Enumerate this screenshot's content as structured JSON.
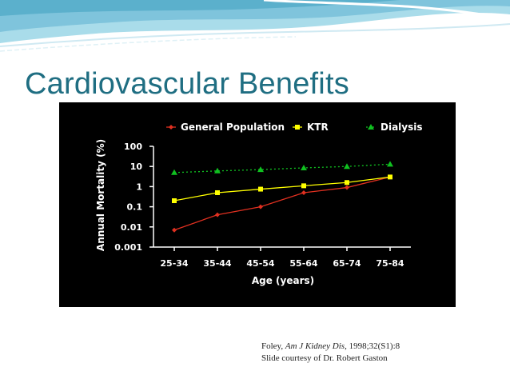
{
  "slide": {
    "title": "Cardiovascular Benefits",
    "caption": {
      "author": "Foley, ",
      "journal": "Am J Kidney Dis",
      "citation": ", 1998;32(S1):8",
      "courtesy": "Slide courtesy of Dr. Robert Gaston"
    }
  },
  "colors": {
    "title": "#1f6e82",
    "general_population": "#e03020",
    "ktr": "#ffff00",
    "dialysis": "#10c020",
    "chart_background": "#000000"
  },
  "chart_data": {
    "type": "line",
    "title": "",
    "xlabel": "Age (years)",
    "ylabel": "Annual Mortality (%)",
    "yscale": "log",
    "ylim": [
      0.001,
      100
    ],
    "yticks": [
      "100",
      "10",
      "1",
      "0.1",
      "0.01",
      "0.001"
    ],
    "yticks_values": [
      100,
      10,
      1,
      0.1,
      0.01,
      0.001
    ],
    "categories": [
      "25-34",
      "35-44",
      "45-54",
      "55-64",
      "65-74",
      "75-84"
    ],
    "legend_position": "top",
    "grid": false,
    "series": [
      {
        "name": "General Population",
        "marker": "diamond",
        "color": "#e03020",
        "line": "solid",
        "values": [
          0.007,
          0.04,
          0.1,
          0.5,
          0.9,
          3
        ]
      },
      {
        "name": "KTR",
        "marker": "square",
        "color": "#ffff00",
        "line": "solid",
        "values": [
          0.2,
          0.5,
          0.75,
          1.1,
          1.6,
          3
        ]
      },
      {
        "name": "Dialysis",
        "marker": "triangle",
        "color": "#10c020",
        "line": "dotted",
        "values": [
          5,
          6,
          7,
          8.5,
          10,
          13
        ]
      }
    ]
  }
}
